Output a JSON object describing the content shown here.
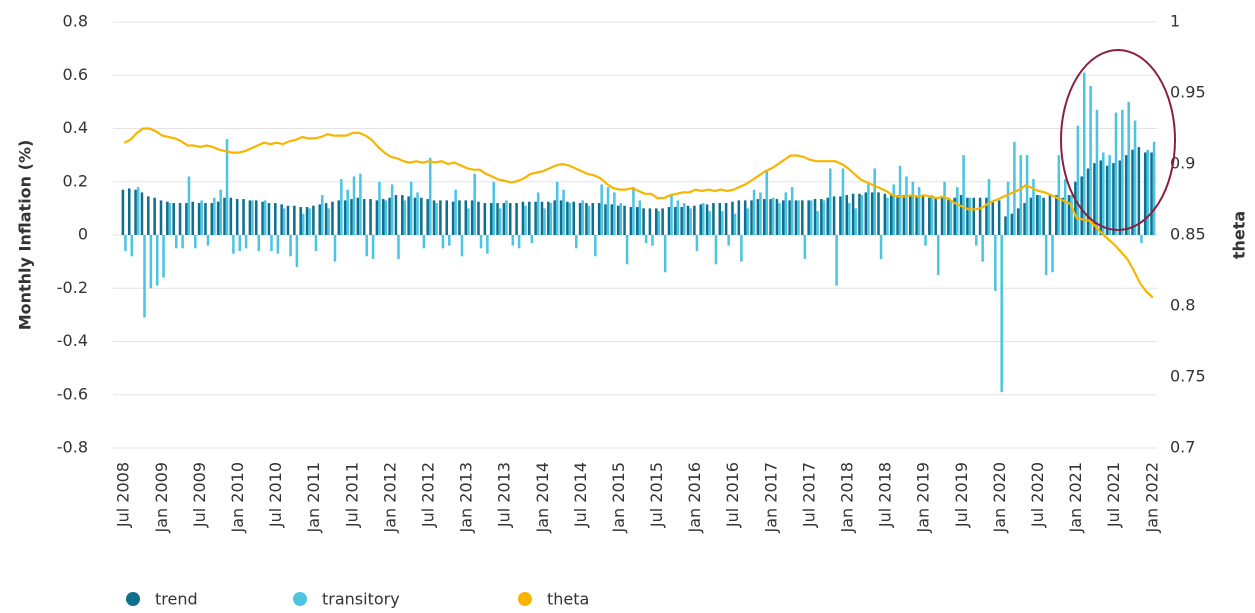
{
  "chart_data": {
    "type": "bar",
    "y_label": "Monthly Inflation (%)",
    "y2_label": "theta",
    "ylim": [
      -0.8,
      0.8
    ],
    "yticks": [
      0.8,
      0.6,
      0.4,
      0.2,
      0,
      -0.2,
      -0.4,
      -0.6,
      -0.8
    ],
    "y2lim": [
      0.7,
      1
    ],
    "y2ticks": [
      1,
      0.95,
      0.9,
      0.85,
      0.8,
      0.75,
      0.7
    ],
    "grid": true,
    "legend": "bottom-left",
    "categories": [
      "Jul 2008",
      null,
      null,
      null,
      null,
      null,
      "Jan 2009",
      null,
      null,
      null,
      null,
      null,
      "Jul 2009",
      null,
      null,
      null,
      null,
      null,
      "Jan 2010",
      null,
      null,
      null,
      null,
      null,
      "Jul 2010",
      null,
      null,
      null,
      null,
      null,
      "Jan 2011",
      null,
      null,
      null,
      null,
      null,
      "Jul 2011",
      null,
      null,
      null,
      null,
      null,
      "Jan 2012",
      null,
      null,
      null,
      null,
      null,
      "Jul 2012",
      null,
      null,
      null,
      null,
      null,
      "Jan 2013",
      null,
      null,
      null,
      null,
      null,
      "Jul 2013",
      null,
      null,
      null,
      null,
      null,
      "Jan 2014",
      null,
      null,
      null,
      null,
      null,
      "Jul 2014",
      null,
      null,
      null,
      null,
      null,
      "Jan 2015",
      null,
      null,
      null,
      null,
      null,
      "Jul 2015",
      null,
      null,
      null,
      null,
      null,
      "Jan 2016",
      null,
      null,
      null,
      null,
      null,
      "Jul 2016",
      null,
      null,
      null,
      null,
      null,
      "Jan 2017",
      null,
      null,
      null,
      null,
      null,
      "Jul 2017",
      null,
      null,
      null,
      null,
      null,
      "Jan 2018",
      null,
      null,
      null,
      null,
      null,
      "Jul 2018",
      null,
      null,
      null,
      null,
      null,
      "Jan 2019",
      null,
      null,
      null,
      null,
      null,
      "Jul 2019",
      null,
      null,
      null,
      null,
      null,
      "Jan 2020",
      null,
      null,
      null,
      null,
      null,
      "Jul 2020",
      null,
      null,
      null,
      null,
      null,
      "Jan 2021",
      null,
      null,
      null,
      null,
      null,
      "Jul 2021",
      null,
      null,
      null,
      null,
      null,
      "Jan 2022"
    ],
    "series": [
      {
        "name": "trend",
        "color": "#0f6f8e",
        "values": [
          0.17,
          0.175,
          0.17,
          0.16,
          0.145,
          0.14,
          0.13,
          0.125,
          0.12,
          0.12,
          0.12,
          0.125,
          0.12,
          0.12,
          0.12,
          0.125,
          0.14,
          0.14,
          0.135,
          0.135,
          0.13,
          0.13,
          0.125,
          0.12,
          0.12,
          0.115,
          0.11,
          0.11,
          0.105,
          0.105,
          0.11,
          0.115,
          0.12,
          0.125,
          0.13,
          0.13,
          0.135,
          0.14,
          0.135,
          0.135,
          0.13,
          0.135,
          0.14,
          0.15,
          0.15,
          0.145,
          0.14,
          0.14,
          0.135,
          0.13,
          0.13,
          0.13,
          0.125,
          0.13,
          0.13,
          0.13,
          0.125,
          0.12,
          0.12,
          0.12,
          0.12,
          0.12,
          0.12,
          0.125,
          0.125,
          0.125,
          0.125,
          0.125,
          0.13,
          0.13,
          0.125,
          0.125,
          0.12,
          0.12,
          0.12,
          0.12,
          0.115,
          0.115,
          0.11,
          0.11,
          0.105,
          0.105,
          0.1,
          0.1,
          0.1,
          0.1,
          0.105,
          0.105,
          0.105,
          0.11,
          0.11,
          0.115,
          0.115,
          0.12,
          0.12,
          0.12,
          0.125,
          0.13,
          0.13,
          0.13,
          0.135,
          0.135,
          0.135,
          0.135,
          0.13,
          0.13,
          0.13,
          0.13,
          0.13,
          0.135,
          0.135,
          0.14,
          0.145,
          0.145,
          0.15,
          0.155,
          0.155,
          0.16,
          0.16,
          0.16,
          0.155,
          0.155,
          0.15,
          0.15,
          0.15,
          0.145,
          0.145,
          0.14,
          0.14,
          0.14,
          0.14,
          0.14,
          0.15,
          0.14,
          0.14,
          0.14,
          0.14,
          0.13,
          0.13,
          0.07,
          0.08,
          0.1,
          0.12,
          0.14,
          0.15,
          0.14,
          0.15,
          0.15,
          0.14,
          0.15,
          0.2,
          0.22,
          0.25,
          0.27,
          0.28,
          0.26,
          0.27,
          0.28,
          0.3,
          0.32,
          0.33,
          0.31,
          0.31
        ]
      },
      {
        "name": "transitory",
        "color": "#4cc5e3",
        "values": [
          -0.06,
          -0.08,
          0.18,
          -0.31,
          -0.2,
          -0.19,
          -0.16,
          0.12,
          -0.05,
          -0.05,
          0.22,
          -0.05,
          0.13,
          -0.04,
          0.14,
          0.17,
          0.36,
          -0.07,
          -0.06,
          -0.05,
          0.13,
          -0.06,
          0.13,
          -0.06,
          -0.07,
          0.1,
          -0.08,
          -0.12,
          0.08,
          0.1,
          -0.06,
          0.15,
          0.1,
          -0.1,
          0.21,
          0.17,
          0.22,
          0.23,
          -0.08,
          -0.09,
          0.2,
          0.13,
          0.19,
          -0.09,
          0.13,
          0.2,
          0.16,
          -0.05,
          0.29,
          0.12,
          -0.05,
          -0.04,
          0.17,
          -0.08,
          0.1,
          0.23,
          -0.05,
          -0.07,
          0.2,
          0.1,
          0.13,
          -0.04,
          -0.05,
          0.11,
          -0.03,
          0.16,
          0.1,
          0.12,
          0.2,
          0.17,
          0.12,
          -0.05,
          0.13,
          0.11,
          -0.08,
          0.19,
          0.18,
          0.16,
          0.12,
          -0.11,
          0.18,
          0.13,
          -0.03,
          -0.04,
          0.09,
          -0.14,
          0.15,
          0.13,
          0.12,
          0.1,
          -0.06,
          0.12,
          0.09,
          -0.11,
          0.09,
          -0.04,
          0.08,
          -0.1,
          0.1,
          0.17,
          0.16,
          0.24,
          0.14,
          0.12,
          0.16,
          0.18,
          0.13,
          -0.09,
          0.13,
          0.09,
          0.13,
          0.25,
          -0.19,
          0.25,
          0.12,
          0.1,
          0.15,
          0.19,
          0.25,
          -0.09,
          0.14,
          0.19,
          0.26,
          0.22,
          0.2,
          0.18,
          -0.04,
          0.15,
          -0.15,
          0.2,
          0.13,
          0.18,
          0.3,
          0.14,
          -0.04,
          -0.1,
          0.21,
          -0.21,
          -0.59,
          0.2,
          0.35,
          0.3,
          0.3,
          0.21,
          0.15,
          -0.15,
          -0.14,
          0.3,
          0.21,
          0.15,
          0.41,
          0.61,
          0.56,
          0.47,
          0.31,
          0.3,
          0.46,
          0.47,
          0.5,
          0.43,
          -0.03,
          0.32,
          0.35
        ]
      },
      {
        "name": "theta",
        "color": "#f7b500",
        "axis": "y2",
        "values": [
          0.915,
          0.917,
          0.922,
          0.925,
          0.925,
          0.923,
          0.92,
          0.919,
          0.918,
          0.916,
          0.913,
          0.913,
          0.912,
          0.913,
          0.912,
          0.91,
          0.909,
          0.908,
          0.908,
          0.909,
          0.911,
          0.913,
          0.915,
          0.914,
          0.915,
          0.914,
          0.916,
          0.917,
          0.919,
          0.918,
          0.918,
          0.919,
          0.921,
          0.92,
          0.92,
          0.92,
          0.922,
          0.922,
          0.92,
          0.917,
          0.912,
          0.908,
          0.905,
          0.904,
          0.902,
          0.901,
          0.902,
          0.901,
          0.902,
          0.901,
          0.902,
          0.9,
          0.901,
          0.899,
          0.897,
          0.896,
          0.896,
          0.893,
          0.891,
          0.889,
          0.888,
          0.887,
          0.888,
          0.89,
          0.893,
          0.894,
          0.895,
          0.897,
          0.899,
          0.9,
          0.899,
          0.897,
          0.895,
          0.893,
          0.892,
          0.89,
          0.886,
          0.883,
          0.882,
          0.882,
          0.883,
          0.881,
          0.879,
          0.879,
          0.876,
          0.876,
          0.878,
          0.879,
          0.88,
          0.88,
          0.882,
          0.881,
          0.882,
          0.881,
          0.882,
          0.881,
          0.882,
          0.884,
          0.886,
          0.889,
          0.892,
          0.895,
          0.897,
          0.9,
          0.903,
          0.906,
          0.906,
          0.905,
          0.903,
          0.902,
          0.902,
          0.902,
          0.902,
          0.9,
          0.897,
          0.893,
          0.889,
          0.887,
          0.885,
          0.883,
          0.881,
          0.878,
          0.877,
          0.877,
          0.878,
          0.877,
          0.878,
          0.877,
          0.876,
          0.877,
          0.875,
          0.872,
          0.87,
          0.868,
          0.868,
          0.869,
          0.872,
          0.874,
          0.876,
          0.878,
          0.88,
          0.882,
          0.885,
          0.883,
          0.881,
          0.88,
          0.878,
          0.876,
          0.874,
          0.872,
          0.862,
          0.861,
          0.86,
          0.856,
          0.851,
          0.847,
          0.843,
          0.838,
          0.833,
          0.825,
          0.816,
          0.81,
          0.806
        ]
      }
    ]
  }
}
